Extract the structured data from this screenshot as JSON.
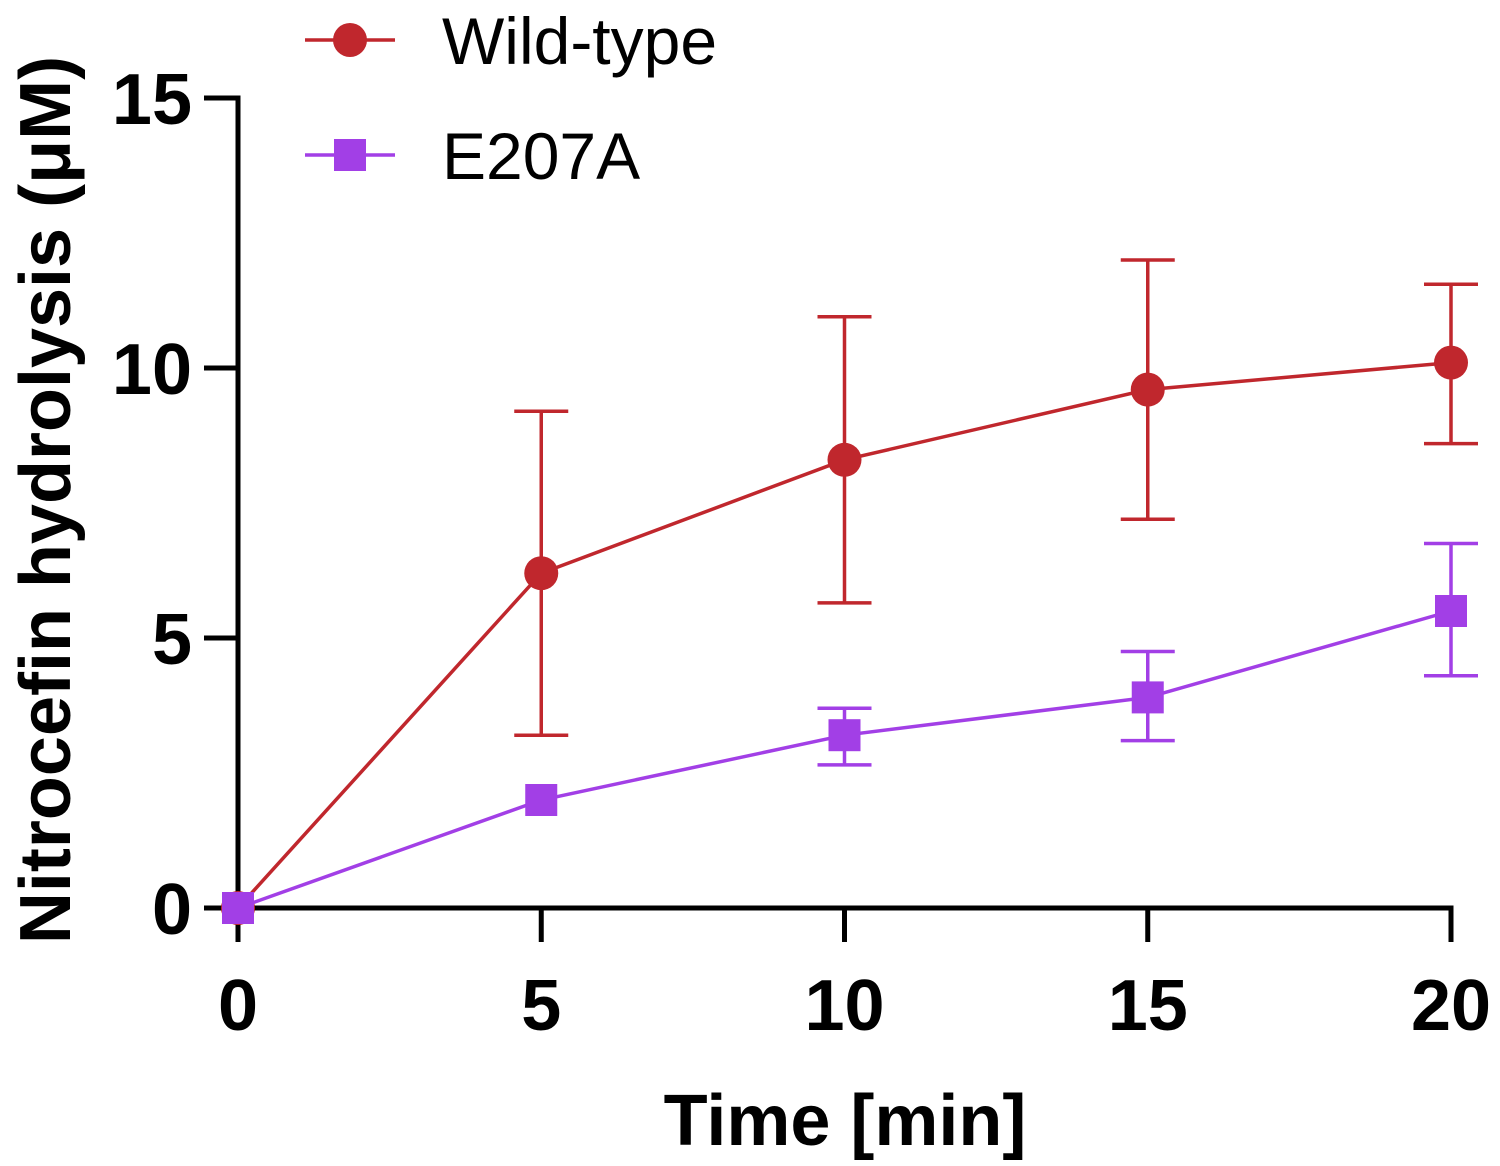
{
  "chart_data": {
    "type": "line",
    "title": "",
    "xlabel": "Time [min]",
    "ylabel": "Nitrocefin hydrolysis (μM)",
    "x": [
      0,
      5,
      10,
      15,
      20
    ],
    "xlim": [
      0,
      20
    ],
    "ylim": [
      0,
      15
    ],
    "x_ticks": [
      "0",
      "5",
      "10",
      "15",
      "20"
    ],
    "y_ticks": [
      "0",
      "5",
      "10",
      "15"
    ],
    "x_tick_values": [
      0,
      5,
      10,
      15,
      20
    ],
    "y_tick_values": [
      0,
      5,
      10,
      15
    ],
    "grid": false,
    "legend_position": "top-left",
    "series": [
      {
        "name": "Wild-type",
        "marker": "circle",
        "color": "#c0272d",
        "values": [
          0,
          6.2,
          8.3,
          9.6,
          10.1
        ],
        "error_low": [
          0,
          3.2,
          5.65,
          7.2,
          8.6
        ],
        "error_high": [
          0,
          9.2,
          10.95,
          12.0,
          11.55
        ]
      },
      {
        "name": "E207A",
        "marker": "square",
        "color": "#a23fe6",
        "values": [
          0,
          2.0,
          3.2,
          3.9,
          5.5
        ],
        "error_low": [
          0,
          2.0,
          2.65,
          3.1,
          4.3
        ],
        "error_high": [
          0,
          2.0,
          3.7,
          4.75,
          6.75
        ]
      }
    ]
  }
}
